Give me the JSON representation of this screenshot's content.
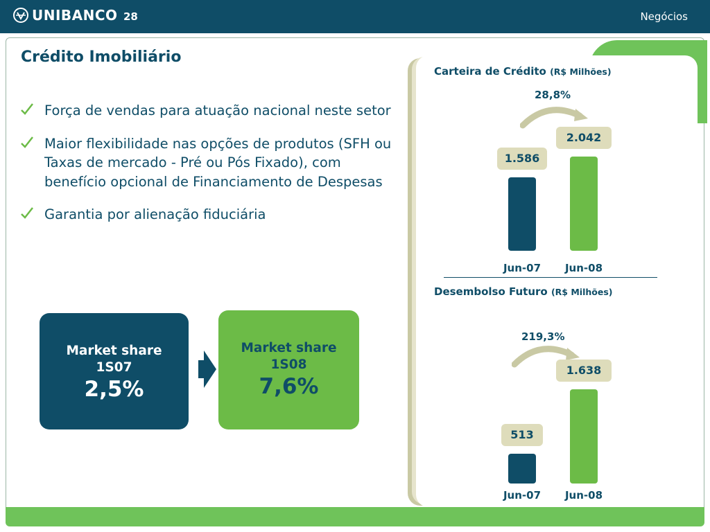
{
  "header": {
    "logo_text": "UNIBANCO",
    "page_number": "28",
    "section": "Negócios"
  },
  "title": "Crédito Imobiliário",
  "bullets": [
    "Força de vendas para atuação nacional neste setor",
    "Maior flexibilidade nas opções de produtos (SFH ou Taxas de mercado - Pré ou Pós Fixado), com benefício opcional de Financiamento de Despesas",
    "Garantia por alienação fiduciária"
  ],
  "market_share": {
    "first": {
      "label_line1": "Market share",
      "label_line2": "1S07",
      "value": "2,5%"
    },
    "second": {
      "label_line1": "Market share",
      "label_line2": "1S08",
      "value": "7,6%"
    }
  },
  "colors": {
    "navy": "#0f4d67",
    "green": "#6cbb47",
    "light_green": "#6fc35a",
    "label_bg": "#dedcbb"
  },
  "chart_data": [
    {
      "type": "bar",
      "title": "Carteira de Crédito",
      "unit": "(R$ Milhões)",
      "growth": "28,8%",
      "categories": [
        "Jun-07",
        "Jun-08"
      ],
      "values": [
        1586,
        2042
      ],
      "value_labels": [
        "1.586",
        "2.042"
      ],
      "bar_colors": [
        "#0f4d67",
        "#6cbb47"
      ]
    },
    {
      "type": "bar",
      "title": "Desembolso Futuro",
      "unit": "(R$ Milhões)",
      "growth": "219,3%",
      "categories": [
        "Jun-07",
        "Jun-08"
      ],
      "values": [
        513,
        1638
      ],
      "value_labels": [
        "513",
        "1.638"
      ],
      "bar_colors": [
        "#0f4d67",
        "#6cbb47"
      ]
    }
  ]
}
